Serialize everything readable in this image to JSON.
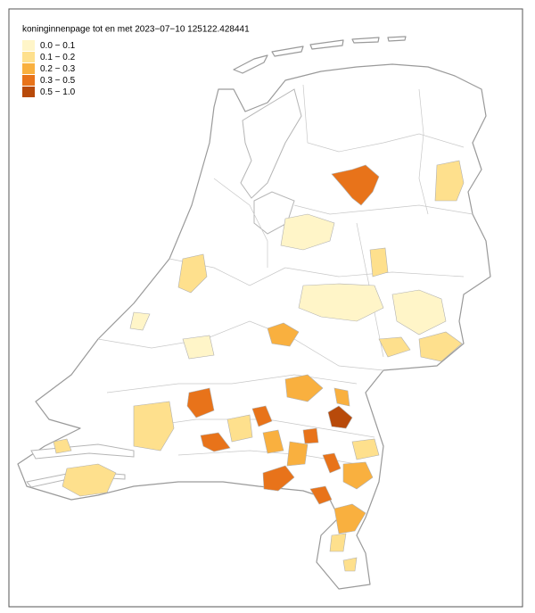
{
  "title": "koninginnenpage tot en met 2023−07−10 125122.428441",
  "legend": {
    "items": [
      {
        "label": "0.0 − 0.1",
        "color": "#fff5c8"
      },
      {
        "label": "0.1 − 0.2",
        "color": "#fee08d"
      },
      {
        "label": "0.2 − 0.3",
        "color": "#f9b03f"
      },
      {
        "label": "0.3 − 0.5",
        "color": "#e8731a"
      },
      {
        "label": "0.5 − 1.0",
        "color": "#b84a0a"
      }
    ]
  }
}
